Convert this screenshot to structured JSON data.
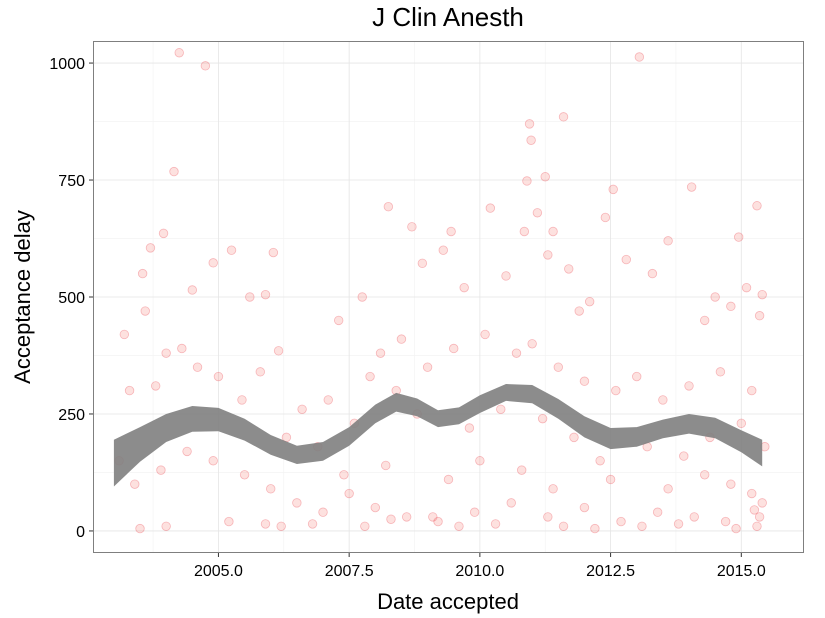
{
  "chart_data": {
    "type": "scatter",
    "title": "J Clin Anesth",
    "xlabel": "Date accepted",
    "ylabel": "Acceptance delay",
    "xlim": [
      2002.62,
      2016.18
    ],
    "ylim": [
      -45,
      1045
    ],
    "x_ticks": [
      2005.0,
      2007.5,
      2010.0,
      2012.5,
      2015.0
    ],
    "x_tick_labels": [
      "2005.0",
      "2007.5",
      "2010.0",
      "2012.5",
      "2015.0"
    ],
    "y_ticks": [
      0,
      250,
      500,
      750,
      1000
    ],
    "y_tick_labels": [
      "0",
      "250",
      "500",
      "750",
      "1000"
    ],
    "grid": true,
    "legend": "none",
    "point_color": "#f8766d",
    "smooth_band_color": "#7f7f7f",
    "points": [
      [
        2004.25,
        1022
      ],
      [
        2004.75,
        994
      ],
      [
        2013.05,
        1013
      ],
      [
        2004.15,
        768
      ],
      [
        2010.95,
        870
      ],
      [
        2010.98,
        835
      ],
      [
        2011.6,
        885
      ],
      [
        2011.25,
        757
      ],
      [
        2012.55,
        730
      ],
      [
        2010.9,
        748
      ],
      [
        2014.05,
        735
      ],
      [
        2014.95,
        628
      ],
      [
        2015.3,
        695
      ],
      [
        2003.95,
        636
      ],
      [
        2003.55,
        550
      ],
      [
        2003.7,
        605
      ],
      [
        2005.25,
        600
      ],
      [
        2004.5,
        515
      ],
      [
        2005.9,
        505
      ],
      [
        2006.05,
        595
      ],
      [
        2004.9,
        573
      ],
      [
        2005.6,
        500
      ],
      [
        2003.6,
        470
      ],
      [
        2003.2,
        420
      ],
      [
        2004.0,
        380
      ],
      [
        2004.3,
        390
      ],
      [
        2005.0,
        330
      ],
      [
        2005.45,
        280
      ],
      [
        2006.15,
        385
      ],
      [
        2003.3,
        300
      ],
      [
        2003.8,
        310
      ],
      [
        2004.6,
        350
      ],
      [
        2005.8,
        340
      ],
      [
        2007.3,
        450
      ],
      [
        2007.75,
        500
      ],
      [
        2008.25,
        693
      ],
      [
        2008.7,
        650
      ],
      [
        2008.9,
        572
      ],
      [
        2009.3,
        600
      ],
      [
        2009.45,
        640
      ],
      [
        2009.7,
        520
      ],
      [
        2010.2,
        690
      ],
      [
        2010.5,
        545
      ],
      [
        2010.85,
        640
      ],
      [
        2011.1,
        680
      ],
      [
        2011.4,
        640
      ],
      [
        2011.3,
        590
      ],
      [
        2012.4,
        670
      ],
      [
        2012.1,
        490
      ],
      [
        2011.9,
        470
      ],
      [
        2011.7,
        560
      ],
      [
        2012.8,
        580
      ],
      [
        2013.3,
        550
      ],
      [
        2013.6,
        620
      ],
      [
        2014.5,
        500
      ],
      [
        2014.3,
        450
      ],
      [
        2014.8,
        480
      ],
      [
        2015.1,
        520
      ],
      [
        2015.4,
        505
      ],
      [
        2015.35,
        460
      ],
      [
        2008.5,
        410
      ],
      [
        2008.1,
        380
      ],
      [
        2007.9,
        330
      ],
      [
        2008.4,
        300
      ],
      [
        2009.0,
        350
      ],
      [
        2009.5,
        390
      ],
      [
        2010.1,
        420
      ],
      [
        2010.7,
        380
      ],
      [
        2011.0,
        400
      ],
      [
        2011.5,
        350
      ],
      [
        2012.0,
        320
      ],
      [
        2012.6,
        300
      ],
      [
        2013.0,
        330
      ],
      [
        2013.5,
        280
      ],
      [
        2014.0,
        310
      ],
      [
        2014.6,
        340
      ],
      [
        2015.2,
        300
      ],
      [
        2007.1,
        280
      ],
      [
        2006.6,
        260
      ],
      [
        2006.3,
        200
      ],
      [
        2006.9,
        180
      ],
      [
        2007.6,
        230
      ],
      [
        2008.8,
        250
      ],
      [
        2009.8,
        220
      ],
      [
        2010.4,
        260
      ],
      [
        2011.2,
        240
      ],
      [
        2011.8,
        200
      ],
      [
        2012.3,
        150
      ],
      [
        2013.2,
        180
      ],
      [
        2013.9,
        160
      ],
      [
        2014.4,
        200
      ],
      [
        2015.0,
        230
      ],
      [
        2015.45,
        180
      ],
      [
        2003.1,
        150
      ],
      [
        2003.4,
        100
      ],
      [
        2003.9,
        130
      ],
      [
        2004.4,
        170
      ],
      [
        2004.9,
        150
      ],
      [
        2005.5,
        120
      ],
      [
        2006.0,
        90
      ],
      [
        2006.5,
        60
      ],
      [
        2007.0,
        40
      ],
      [
        2007.5,
        80
      ],
      [
        2008.0,
        50
      ],
      [
        2008.6,
        30
      ],
      [
        2009.2,
        20
      ],
      [
        2009.9,
        40
      ],
      [
        2010.6,
        60
      ],
      [
        2011.3,
        30
      ],
      [
        2012.0,
        50
      ],
      [
        2012.7,
        20
      ],
      [
        2013.4,
        40
      ],
      [
        2014.1,
        30
      ],
      [
        2014.7,
        20
      ],
      [
        2015.3,
        10
      ],
      [
        2006.2,
        10
      ],
      [
        2006.8,
        15
      ],
      [
        2007.8,
        10
      ],
      [
        2008.3,
        25
      ],
      [
        2009.1,
        30
      ],
      [
        2009.6,
        10
      ],
      [
        2010.3,
        15
      ],
      [
        2011.6,
        10
      ],
      [
        2012.2,
        5
      ],
      [
        2013.1,
        10
      ],
      [
        2013.8,
        15
      ],
      [
        2014.9,
        5
      ],
      [
        2015.25,
        45
      ],
      [
        2015.35,
        30
      ],
      [
        2003.5,
        5
      ],
      [
        2004.0,
        10
      ],
      [
        2005.2,
        20
      ],
      [
        2005.9,
        15
      ],
      [
        2015.4,
        60
      ],
      [
        2015.2,
        80
      ],
      [
        2007.4,
        120
      ],
      [
        2008.2,
        140
      ],
      [
        2009.4,
        110
      ],
      [
        2010.0,
        150
      ],
      [
        2010.8,
        130
      ],
      [
        2011.4,
        90
      ],
      [
        2012.5,
        110
      ],
      [
        2013.6,
        90
      ],
      [
        2014.3,
        120
      ],
      [
        2014.8,
        100
      ]
    ],
    "smooth_band": [
      {
        "x": 2003.0,
        "lo": 95,
        "hi": 195
      },
      {
        "x": 2003.5,
        "lo": 148,
        "hi": 222
      },
      {
        "x": 2004.0,
        "lo": 190,
        "hi": 250
      },
      {
        "x": 2004.5,
        "lo": 212,
        "hi": 267
      },
      {
        "x": 2005.0,
        "lo": 213,
        "hi": 263
      },
      {
        "x": 2005.5,
        "lo": 193,
        "hi": 240
      },
      {
        "x": 2006.0,
        "lo": 163,
        "hi": 205
      },
      {
        "x": 2006.5,
        "lo": 143,
        "hi": 182
      },
      {
        "x": 2007.0,
        "lo": 150,
        "hi": 190
      },
      {
        "x": 2007.5,
        "lo": 182,
        "hi": 222
      },
      {
        "x": 2008.0,
        "lo": 230,
        "hi": 270
      },
      {
        "x": 2008.4,
        "lo": 255,
        "hi": 295
      },
      {
        "x": 2008.8,
        "lo": 245,
        "hi": 283
      },
      {
        "x": 2009.2,
        "lo": 222,
        "hi": 258
      },
      {
        "x": 2009.6,
        "lo": 228,
        "hi": 264
      },
      {
        "x": 2010.0,
        "lo": 252,
        "hi": 290
      },
      {
        "x": 2010.5,
        "lo": 278,
        "hi": 314
      },
      {
        "x": 2011.0,
        "lo": 273,
        "hi": 312
      },
      {
        "x": 2011.5,
        "lo": 240,
        "hi": 282
      },
      {
        "x": 2012.0,
        "lo": 200,
        "hi": 245
      },
      {
        "x": 2012.5,
        "lo": 175,
        "hi": 220
      },
      {
        "x": 2013.0,
        "lo": 180,
        "hi": 222
      },
      {
        "x": 2013.5,
        "lo": 198,
        "hi": 238
      },
      {
        "x": 2014.0,
        "lo": 208,
        "hi": 250
      },
      {
        "x": 2014.5,
        "lo": 198,
        "hi": 242
      },
      {
        "x": 2015.0,
        "lo": 168,
        "hi": 215
      },
      {
        "x": 2015.4,
        "lo": 138,
        "hi": 195
      }
    ]
  }
}
